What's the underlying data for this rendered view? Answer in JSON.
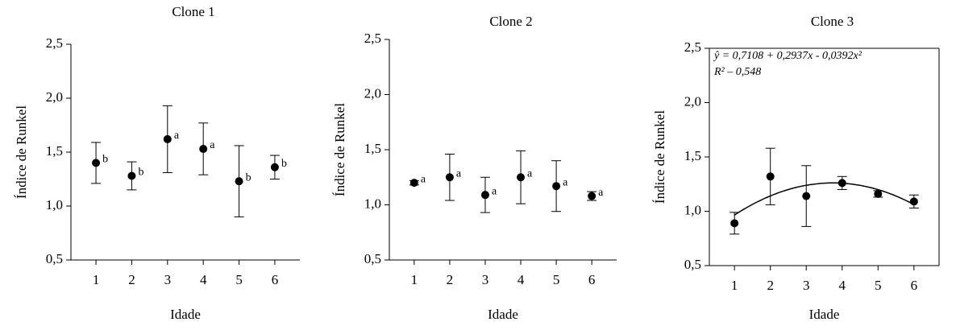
{
  "chart_data": [
    {
      "type": "scatter",
      "title": "Clone 1",
      "xlabel": "Idade",
      "ylabel": "Índice de Runkel",
      "x": [
        1,
        2,
        3,
        4,
        5,
        6
      ],
      "values": [
        1.4,
        1.28,
        1.62,
        1.53,
        1.23,
        1.36
      ],
      "errors": [
        0.19,
        0.13,
        0.31,
        0.24,
        0.33,
        0.11
      ],
      "annotations": [
        "b",
        "b",
        "a",
        "a",
        "b",
        "b"
      ],
      "color": "#000000",
      "xlim": [
        0.3,
        6.7
      ],
      "xticks": [
        1,
        2,
        3,
        4,
        5,
        6
      ],
      "ylim": [
        0.5,
        2.5
      ],
      "yticks": [
        {
          "value": 0.5,
          "label": "0,5"
        },
        {
          "value": 1.0,
          "label": "1,0"
        },
        {
          "value": 1.5,
          "label": "1,5"
        },
        {
          "value": 2.0,
          "label": "2,0"
        },
        {
          "value": 2.5,
          "label": "2,5"
        }
      ],
      "frame": false
    },
    {
      "type": "scatter",
      "title": "Clone 2",
      "xlabel": "Idade",
      "ylabel": "Índice de Runkel",
      "x": [
        1,
        2,
        3,
        4,
        5,
        6
      ],
      "values": [
        1.2,
        1.25,
        1.09,
        1.25,
        1.17,
        1.08
      ],
      "errors": [
        0.02,
        0.21,
        0.16,
        0.24,
        0.23,
        0.04
      ],
      "annotations": [
        "a",
        "a",
        "a",
        "a",
        "a",
        "a"
      ],
      "color": "#000000",
      "xlim": [
        0.3,
        6.7
      ],
      "xticks": [
        1,
        2,
        3,
        4,
        5,
        6
      ],
      "ylim": [
        0.5,
        2.5
      ],
      "yticks": [
        {
          "value": 0.5,
          "label": "0,5"
        },
        {
          "value": 1.0,
          "label": "1,0"
        },
        {
          "value": 1.5,
          "label": "1,5"
        },
        {
          "value": 2.0,
          "label": "2,0"
        },
        {
          "value": 2.5,
          "label": "2,5"
        }
      ],
      "frame": false
    },
    {
      "type": "scatter",
      "title": "Clone 3",
      "xlabel": "Idade",
      "ylabel": "Índice de Runkel",
      "x": [
        1,
        2,
        3,
        4,
        5,
        6
      ],
      "values": [
        0.89,
        1.32,
        1.14,
        1.26,
        1.16,
        1.09
      ],
      "errors": [
        0.1,
        0.26,
        0.28,
        0.06,
        0.03,
        0.06
      ],
      "color": "#000000",
      "trendline": {
        "equation": "ŷ = 0,7108 + 0,2937x - 0,0392x²",
        "r2": "R² – 0,548",
        "coefficients": [
          0.7108,
          0.2937,
          -0.0392
        ]
      },
      "xlim": [
        0.3,
        6.7
      ],
      "xticks": [
        1,
        2,
        3,
        4,
        5,
        6
      ],
      "ylim": [
        0.5,
        2.5
      ],
      "yticks": [
        {
          "value": 0.5,
          "label": "0,5"
        },
        {
          "value": 1.0,
          "label": "1,0"
        },
        {
          "value": 1.5,
          "label": "1,5"
        },
        {
          "value": 2.0,
          "label": "2,0"
        },
        {
          "value": 2.5,
          "label": "2,5"
        }
      ],
      "frame": true
    }
  ]
}
